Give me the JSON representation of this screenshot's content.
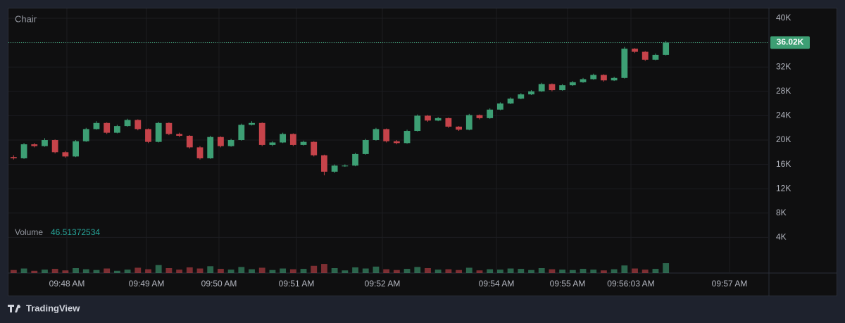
{
  "chart_data": {
    "type": "candlestick",
    "title": "Chair",
    "volume_label": "Volume",
    "volume_value": "46.51372534",
    "brand": "TradingView",
    "up_color": "#3d9f74",
    "down_color": "#c6434a",
    "open": [
      17200,
      17000,
      19300,
      19000,
      20000,
      18000,
      17300,
      19800,
      21800,
      22800,
      21200,
      22300,
      23300,
      21800,
      19700,
      22800,
      21000,
      20700,
      18800,
      17000,
      20500,
      19000,
      20000,
      22500,
      22800,
      19200,
      19600,
      21000,
      19200,
      19700,
      17500,
      14800,
      15800,
      15800,
      17700,
      20000,
      21800,
      19800,
      19500,
      21500,
      24000,
      23200,
      23600,
      22200,
      21700,
      24100,
      23600,
      25000,
      26000,
      26800,
      27500,
      28000,
      29200,
      28200,
      29000,
      29500,
      30000,
      30700,
      29800,
      30200,
      35000,
      34500,
      33200,
      34000
    ],
    "high": [
      17500,
      19500,
      19500,
      20300,
      20100,
      18200,
      20000,
      22000,
      23100,
      22900,
      22500,
      23500,
      23400,
      21900,
      23000,
      22900,
      21200,
      20800,
      19000,
      20700,
      20600,
      20200,
      22700,
      23100,
      22900,
      19800,
      21200,
      21100,
      19900,
      19800,
      17600,
      16000,
      16000,
      17900,
      20200,
      22000,
      21900,
      20000,
      21700,
      24200,
      24100,
      23800,
      23700,
      22300,
      24300,
      24200,
      25200,
      26200,
      27000,
      27700,
      28200,
      29400,
      29300,
      29200,
      29700,
      30200,
      30900,
      30800,
      30400,
      35300,
      35100,
      34600,
      34200,
      36300
    ],
    "low": [
      16800,
      16900,
      18800,
      18900,
      17800,
      17100,
      17200,
      19700,
      21700,
      21000,
      21100,
      22200,
      21600,
      19500,
      19600,
      20800,
      20500,
      18600,
      16800,
      16900,
      18800,
      18900,
      19900,
      22400,
      19000,
      19000,
      19500,
      19000,
      19100,
      17300,
      14200,
      14600,
      15600,
      15700,
      17600,
      19900,
      19600,
      19300,
      19400,
      21400,
      23000,
      23100,
      22000,
      21500,
      21600,
      23400,
      23500,
      24900,
      25900,
      26700,
      27400,
      27900,
      28000,
      28100,
      28900,
      29400,
      29900,
      29600,
      29700,
      30100,
      34300,
      33000,
      33100,
      33900
    ],
    "close": [
      17000,
      19300,
      19000,
      20000,
      18000,
      17300,
      19800,
      21800,
      22800,
      21200,
      22300,
      23300,
      21800,
      19700,
      22800,
      21000,
      20700,
      18800,
      17000,
      20500,
      19000,
      20000,
      22500,
      22800,
      19200,
      19600,
      21000,
      19200,
      19700,
      17500,
      14800,
      15800,
      15800,
      17700,
      20000,
      21800,
      19800,
      19500,
      21500,
      24000,
      23200,
      23600,
      22200,
      21700,
      24100,
      23600,
      25000,
      26000,
      26800,
      27500,
      28000,
      29200,
      28200,
      29000,
      29500,
      30000,
      30700,
      29800,
      30200,
      35000,
      34500,
      33200,
      34000,
      36020
    ],
    "volume": [
      0.8,
      1.2,
      0.6,
      0.9,
      1.1,
      0.7,
      1.3,
      1.0,
      0.8,
      1.2,
      0.6,
      0.9,
      1.4,
      1.0,
      2.1,
      1.3,
      0.9,
      1.5,
      1.2,
      1.8,
      1.1,
      0.9,
      1.6,
      1.0,
      1.4,
      0.8,
      1.2,
      1.0,
      1.1,
      1.9,
      2.4,
      1.3,
      0.7,
      1.5,
      1.2,
      1.7,
      1.0,
      0.8,
      1.1,
      1.6,
      1.3,
      0.9,
      1.0,
      0.8,
      1.4,
      0.7,
      1.0,
      0.9,
      1.2,
      1.1,
      0.8,
      1.3,
      1.0,
      0.9,
      0.8,
      1.1,
      0.9,
      0.7,
      1.0,
      2.0,
      1.2,
      0.9,
      1.1,
      2.6
    ],
    "last_price": {
      "value": 36020,
      "label": "36.02K"
    },
    "ylim": [
      -1850,
      41620
    ],
    "yticks": [
      {
        "value": 4000,
        "label": "4K"
      },
      {
        "value": 8000,
        "label": "8K"
      },
      {
        "value": 12000,
        "label": "12K"
      },
      {
        "value": 16000,
        "label": "16K"
      },
      {
        "value": 20000,
        "label": "20K"
      },
      {
        "value": 24000,
        "label": "24K"
      },
      {
        "value": 28000,
        "label": "28K"
      },
      {
        "value": 32000,
        "label": "32K"
      },
      {
        "value": 36000,
        "label": "36K"
      },
      {
        "value": 40000,
        "label": "40K"
      }
    ],
    "xticks": [
      "09:48 AM",
      "09:49 AM",
      "09:50 AM",
      "09:51 AM",
      "09:52 AM",
      "09:54 AM",
      "09:55 AM",
      "09:56:03 AM",
      "09:57 AM"
    ],
    "grid": true
  }
}
